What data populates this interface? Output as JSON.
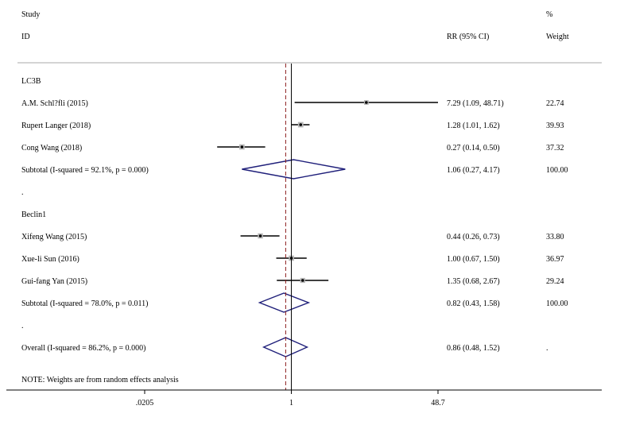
{
  "chart_data": {
    "type": "forest",
    "scale": "log",
    "header": {
      "study": "Study",
      "id": "ID",
      "rr": "RR (95% CI)",
      "pct": "%",
      "weight": "Weight"
    },
    "ticks": [
      {
        "value": 0.0205,
        "label": ".0205"
      },
      {
        "value": 1,
        "label": "1"
      },
      {
        "value": 48.7,
        "label": "48.7"
      }
    ],
    "null_value": 1,
    "overall_effect_line": 0.86,
    "rows": [
      {
        "kind": "group",
        "label": "LC3B"
      },
      {
        "kind": "study",
        "label": "A.M. Schl?fli (2015)",
        "rr": 7.29,
        "lo": 1.09,
        "hi": 48.71,
        "ci_text": "7.29 (1.09, 48.71)",
        "weight": 22.74,
        "weight_text": "22.74"
      },
      {
        "kind": "study",
        "label": "Rupert Langer (2018)",
        "rr": 1.28,
        "lo": 1.01,
        "hi": 1.62,
        "ci_text": "1.28 (1.01, 1.62)",
        "weight": 39.93,
        "weight_text": "39.93"
      },
      {
        "kind": "study",
        "label": "Cong Wang (2018)",
        "rr": 0.27,
        "lo": 0.14,
        "hi": 0.5,
        "ci_text": "0.27 (0.14, 0.50)",
        "weight": 37.32,
        "weight_text": "37.32"
      },
      {
        "kind": "subtotal",
        "label": "Subtotal  (I-squared = 92.1%, p = 0.000)",
        "rr": 1.06,
        "lo": 0.27,
        "hi": 4.17,
        "ci_text": "1.06 (0.27, 4.17)",
        "weight_text": "100.00"
      },
      {
        "kind": "separator",
        "label": "."
      },
      {
        "kind": "group",
        "label": "Beclin1"
      },
      {
        "kind": "study",
        "label": "Xifeng Wang (2015)",
        "rr": 0.44,
        "lo": 0.26,
        "hi": 0.73,
        "ci_text": "0.44 (0.26, 0.73)",
        "weight": 33.8,
        "weight_text": "33.80"
      },
      {
        "kind": "study",
        "label": "Xue-li Sun (2016)",
        "rr": 1.0,
        "lo": 0.67,
        "hi": 1.5,
        "ci_text": "1.00 (0.67, 1.50)",
        "weight": 36.97,
        "weight_text": "36.97"
      },
      {
        "kind": "study",
        "label": "Gui-fang Yan (2015)",
        "rr": 1.35,
        "lo": 0.68,
        "hi": 2.67,
        "ci_text": "1.35 (0.68, 2.67)",
        "weight": 29.24,
        "weight_text": "29.24"
      },
      {
        "kind": "subtotal",
        "label": "Subtotal  (I-squared = 78.0%, p = 0.011)",
        "rr": 0.82,
        "lo": 0.43,
        "hi": 1.58,
        "ci_text": "0.82 (0.43, 1.58)",
        "weight_text": "100.00"
      },
      {
        "kind": "separator",
        "label": "."
      },
      {
        "kind": "overall",
        "label": "Overall  (I-squared = 86.2%, p = 0.000)",
        "rr": 0.86,
        "lo": 0.48,
        "hi": 1.52,
        "ci_text": "0.86 (0.48, 1.52)",
        "weight_text": "."
      }
    ],
    "note": "NOTE: Weights are from random effects analysis",
    "colors": {
      "diamond": "#1f1f7a",
      "box": "#b8b8b8",
      "point": "#000000",
      "effect_line": "#8b1a1a",
      "rule": "#aaaaaa",
      "axis": "#000000"
    }
  }
}
